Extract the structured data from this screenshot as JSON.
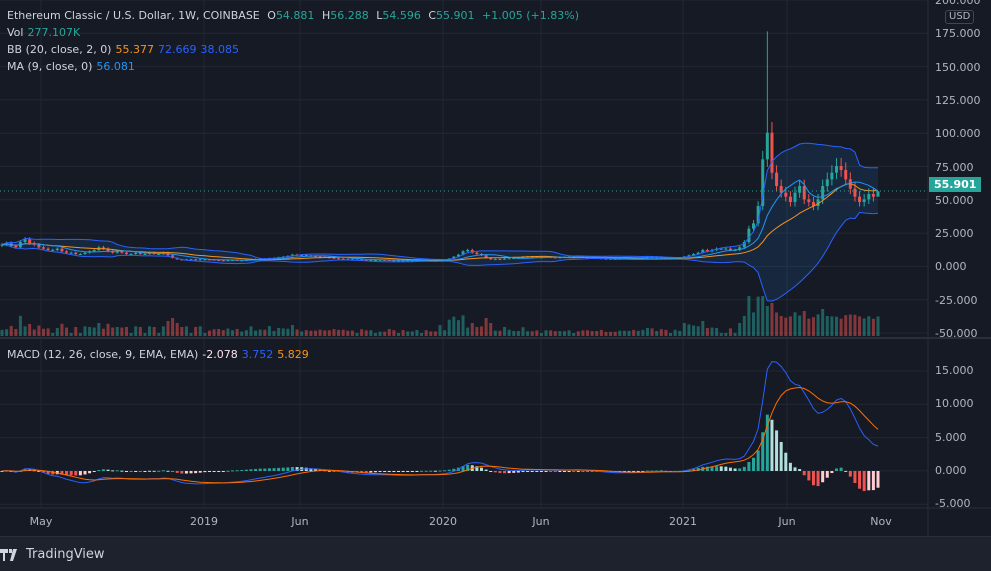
{
  "header": {
    "symbol": "Ethereum Classic / U.S. Dollar, 1W, COINBASE",
    "o_label": "O",
    "open": "54.881",
    "h_label": "H",
    "high": "56.288",
    "l_label": "L",
    "low": "54.596",
    "c_label": "C",
    "close": "55.901",
    "change": "+1.005 (+1.83%)"
  },
  "vol": {
    "label": "Vol",
    "value": "277.107K"
  },
  "bb": {
    "label": "BB (20, close, 2, 0)",
    "basis": "55.377",
    "upper": "72.669",
    "lower": "38.085"
  },
  "ma": {
    "label": "MA (9, close, 0)",
    "value": "56.081"
  },
  "macd": {
    "label": "MACD (12, 26, close, 9, EMA, EMA)",
    "hist": "-2.078",
    "macd": "3.752",
    "signal": "5.829"
  },
  "price_axis": {
    "currency": "USD",
    "ticks": [
      "200.000",
      "175.000",
      "150.000",
      "125.000",
      "100.000",
      "75.000",
      "50.000",
      "25.000",
      "0.000",
      "-25.000",
      "-50.000"
    ],
    "last_price": "55.901"
  },
  "macd_axis": {
    "ticks": [
      "15.000",
      "10.000",
      "5.000",
      "0.000",
      "-5.000"
    ]
  },
  "time_axis": [
    "May",
    "2019",
    "Jun",
    "2020",
    "Jun",
    "2021",
    "Jun",
    "Nov"
  ],
  "footer": {
    "brand": "TradingView"
  },
  "colors": {
    "up": "#26a69a",
    "down": "#ef5350",
    "bb_band": "#2962ff",
    "bb_basis": "#f7931a",
    "ma": "#2196f3",
    "macd": "#2962ff",
    "signal": "#ff6d00",
    "background": "#161a25"
  },
  "chart_data": {
    "type": "candlestick",
    "interval": "1W",
    "ylim": [
      -50,
      200
    ],
    "macd_ylim": [
      -5,
      17.5
    ],
    "spike_high": 176,
    "closes": [
      16,
      17,
      15,
      14,
      18,
      20,
      17,
      16,
      14,
      13,
      12,
      12,
      13,
      11,
      10,
      10,
      9,
      9,
      10,
      11,
      12,
      14,
      13,
      11,
      10,
      11,
      10,
      9,
      9,
      10,
      9,
      9,
      10,
      9,
      9,
      10,
      8,
      6,
      5,
      4.5,
      5,
      5,
      4.5,
      5,
      5,
      4.8,
      4.5,
      4.2,
      4,
      4.3,
      4.5,
      4.2,
      4.3,
      4.5,
      5,
      5.2,
      5.5,
      5.2,
      5.8,
      6,
      6.5,
      7,
      7.5,
      8.5,
      8,
      8.2,
      7.8,
      7.5,
      7.2,
      6.8,
      6.5,
      6.2,
      5.8,
      5.5,
      5.2,
      5,
      4.8,
      4.8,
      4.5,
      4.3,
      4.5,
      4.5,
      4.6,
      4.5,
      4.2,
      4,
      4,
      3.8,
      3.9,
      4,
      4.2,
      4.2,
      4,
      3.9,
      3.8,
      4.3,
      4.5,
      5.5,
      7,
      8.5,
      11,
      12,
      10,
      9,
      8,
      6,
      5,
      5.2,
      5,
      5.5,
      5.8,
      6,
      6.2,
      6.8,
      7,
      6.8,
      6.5,
      6.5,
      6.8,
      6.5,
      6.3,
      6.5,
      6.7,
      7,
      7,
      6.8,
      6.5,
      6.2,
      6,
      5.8,
      5.5,
      5.4,
      5.3,
      5.2,
      5.4,
      5.6,
      5.8,
      5.5,
      5.7,
      6,
      6.5,
      6,
      6.2,
      5.8,
      5.5,
      5.5,
      5.8,
      6,
      7,
      8,
      9,
      10,
      12,
      11,
      12,
      13,
      13,
      13,
      12,
      12,
      14,
      18,
      28,
      32,
      45,
      80,
      100,
      70,
      60,
      55,
      52,
      48,
      55,
      60,
      50,
      48,
      45,
      50,
      60,
      65,
      70,
      75,
      72,
      65,
      58,
      52,
      48,
      50,
      54,
      52,
      55.9
    ]
  }
}
